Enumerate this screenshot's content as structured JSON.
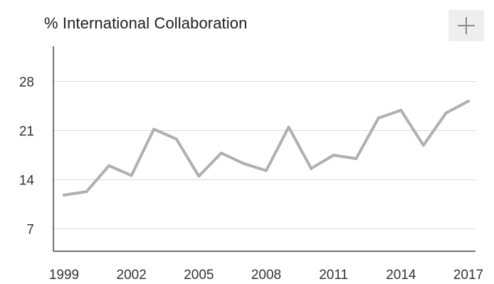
{
  "chart_data": {
    "type": "line",
    "title": "% International Collaboration",
    "xlabel": "",
    "ylabel": "",
    "x": [
      1999,
      2000,
      2001,
      2002,
      2003,
      2004,
      2005,
      2006,
      2007,
      2008,
      2009,
      2010,
      2011,
      2012,
      2013,
      2014,
      2015,
      2016,
      2017
    ],
    "series": [
      {
        "values": [
          11.8,
          12.3,
          16.0,
          14.6,
          21.2,
          19.8,
          14.5,
          17.8,
          16.3,
          15.3,
          21.5,
          15.6,
          17.5,
          17.0,
          22.8,
          23.9,
          18.9,
          23.5,
          25.2
        ]
      }
    ],
    "yticks": [
      7,
      14,
      21,
      28
    ],
    "xticks": [
      1999,
      2002,
      2005,
      2008,
      2011,
      2014,
      2017
    ],
    "ylim": [
      3.8,
      31.5
    ],
    "xlim": [
      1999,
      2017
    ],
    "grid": true,
    "legend": "none",
    "line_color": "#b0b0b0"
  },
  "controls": {
    "expand_icon": "plus-icon"
  }
}
